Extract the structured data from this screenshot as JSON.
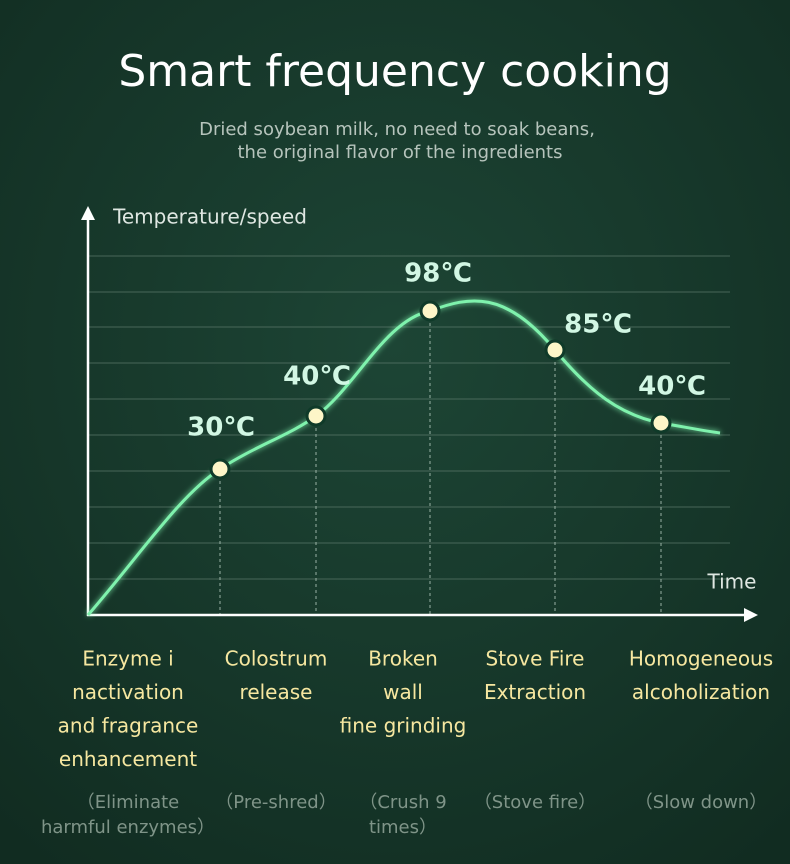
{
  "title": "Smart frequency cooking",
  "subtitle": [
    "Dried soybean milk, no need to soak beans,",
    "the original flavor of the ingredients"
  ],
  "axes": {
    "y_label": "Temperature/speed",
    "x_label": "Time"
  },
  "points": [
    {
      "label": "30℃"
    },
    {
      "label": "40℃"
    },
    {
      "label": "98℃"
    },
    {
      "label": "85℃"
    },
    {
      "label": "40℃"
    }
  ],
  "stages": [
    {
      "name": [
        "Enzyme i",
        "nactivation",
        "and fragrance",
        "enhancement"
      ],
      "note": [
        "（Eliminate",
        "harmful enzymes）"
      ]
    },
    {
      "name": [
        "Colostrum",
        "release"
      ],
      "note": [
        "（Pre-shred）"
      ]
    },
    {
      "name": [
        "Broken",
        "wall",
        "fine grinding"
      ],
      "note": [
        "（Crush 9",
        "times）"
      ]
    },
    {
      "name": [
        "Stove Fire",
        "Extraction"
      ],
      "note": [
        "（Stove fire）"
      ]
    },
    {
      "name": [
        "Homogeneous",
        "alcoholization"
      ],
      "note": [
        "（Slow down）"
      ]
    }
  ]
}
